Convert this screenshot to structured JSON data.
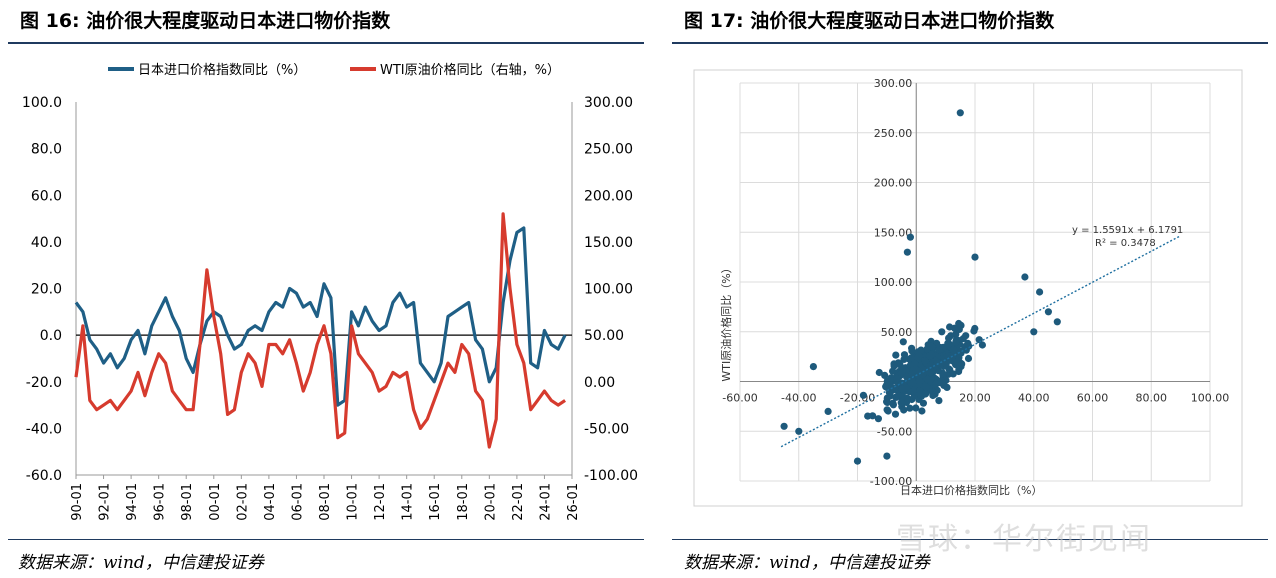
{
  "left_figure": {
    "title": "图 16: 油价很大程度驱动日本进口物价指数",
    "source": "数据来源：wind，中信建投证券"
  },
  "right_figure": {
    "title": "图 17: 油价很大程度驱动日本进口物价指数",
    "source": "数据来源：wind，中信建投证券"
  },
  "watermark": "雪球：华尔街见闻",
  "colors": {
    "blue": "#1f5f86",
    "red": "#d63b2e",
    "scatter": "#1e5a7c",
    "rule": "#1f3a5f"
  },
  "chart_data": [
    {
      "type": "line",
      "legend": [
        "日本进口价格指数同比（%）",
        "WTI原油价格同比（右轴，%）"
      ],
      "legend_position": "top",
      "x_ticks": [
        "90-01",
        "92-01",
        "94-01",
        "96-01",
        "98-01",
        "00-01",
        "02-01",
        "04-01",
        "06-01",
        "08-01",
        "10-01",
        "12-01",
        "14-01",
        "16-01",
        "18-01",
        "20-01",
        "22-01",
        "24-01",
        "26-01"
      ],
      "y_left_ticks": [
        "100.0",
        "80.0",
        "60.0",
        "40.0",
        "20.0",
        "0.0",
        "-20.0",
        "-40.0",
        "-60.0"
      ],
      "y_right_ticks": [
        "300.00",
        "250.00",
        "200.00",
        "150.00",
        "100.00",
        "50.00",
        "0.00",
        "-50.00",
        "-100.00"
      ],
      "ylim_left": [
        -60,
        100
      ],
      "ylim_right": [
        -100,
        300
      ],
      "x": [
        1990,
        1990.5,
        1991,
        1991.5,
        1992,
        1992.5,
        1993,
        1993.5,
        1994,
        1994.5,
        1995,
        1995.5,
        1996,
        1996.5,
        1997,
        1997.5,
        1998,
        1998.5,
        1999,
        1999.5,
        2000,
        2000.5,
        2001,
        2001.5,
        2002,
        2002.5,
        2003,
        2003.5,
        2004,
        2004.5,
        2005,
        2005.5,
        2006,
        2006.5,
        2007,
        2007.5,
        2008,
        2008.5,
        2009,
        2009.5,
        2010,
        2010.5,
        2011,
        2011.5,
        2012,
        2012.5,
        2013,
        2013.5,
        2014,
        2014.5,
        2015,
        2015.5,
        2016,
        2016.5,
        2017,
        2017.5,
        2018,
        2018.5,
        2019,
        2019.5,
        2020,
        2020.5,
        2021,
        2021.5,
        2022,
        2022.5,
        2023,
        2023.5,
        2024,
        2024.5,
        2025,
        2025.5
      ],
      "series": [
        {
          "name": "日本进口价格指数同比（%）",
          "axis": "left",
          "values": [
            14,
            10,
            -2,
            -6,
            -12,
            -8,
            -14,
            -10,
            -2,
            2,
            -8,
            4,
            10,
            16,
            8,
            2,
            -10,
            -16,
            -4,
            6,
            10,
            8,
            0,
            -6,
            -4,
            2,
            4,
            2,
            10,
            14,
            12,
            20,
            18,
            12,
            14,
            8,
            22,
            16,
            -30,
            -28,
            10,
            4,
            12,
            6,
            2,
            4,
            14,
            18,
            12,
            14,
            -12,
            -16,
            -20,
            -12,
            8,
            10,
            12,
            14,
            -2,
            -6,
            -20,
            -14,
            14,
            32,
            44,
            46,
            -12,
            -14,
            2,
            -4,
            -6,
            0
          ]
        },
        {
          "name": "WTI原油价格同比（右轴，%）",
          "axis": "right",
          "values": [
            5,
            60,
            -20,
            -30,
            -25,
            -20,
            -30,
            -20,
            -10,
            10,
            -15,
            10,
            30,
            20,
            -10,
            -20,
            -30,
            -30,
            40,
            120,
            70,
            30,
            -35,
            -30,
            10,
            30,
            20,
            -5,
            40,
            40,
            30,
            45,
            20,
            -10,
            10,
            40,
            60,
            30,
            -60,
            -55,
            60,
            30,
            20,
            10,
            -10,
            -5,
            10,
            5,
            10,
            -30,
            -50,
            -40,
            -20,
            0,
            20,
            10,
            40,
            30,
            -10,
            -20,
            -70,
            -40,
            180,
            100,
            40,
            20,
            -30,
            -20,
            -10,
            -20,
            -25,
            -20
          ]
        }
      ]
    },
    {
      "type": "scatter",
      "xlabel": "日本进口价格指数同比（%）",
      "ylabel": "WTI原油价格同比（%）",
      "xlim": [
        -60,
        100
      ],
      "ylim": [
        -100,
        300
      ],
      "x_ticks": [
        "-60.00",
        "-40.00",
        "-20.00",
        "20.00",
        "40.00",
        "60.00",
        "80.00",
        "100.00"
      ],
      "y_ticks": [
        "300.00",
        "250.00",
        "200.00",
        "150.00",
        "100.00",
        "50.00",
        "-50.00",
        "-100.00"
      ],
      "annotation_eq": "y = 1.5591x + 6.1791",
      "annotation_r2": "R² = 0.3478",
      "trendline": {
        "slope": 1.5591,
        "intercept": 6.1791,
        "x_range": [
          -46,
          90
        ]
      },
      "highlight_points": [
        [
          15,
          270
        ],
        [
          -2,
          145
        ],
        [
          -3,
          130
        ],
        [
          20,
          125
        ],
        [
          37,
          105
        ],
        [
          42,
          90
        ],
        [
          45,
          70
        ],
        [
          48,
          60
        ],
        [
          40,
          50
        ],
        [
          -45,
          -45
        ],
        [
          -40,
          -50
        ],
        [
          -20,
          -80
        ],
        [
          -10,
          -75
        ],
        [
          -30,
          -30
        ],
        [
          -35,
          15
        ]
      ]
    }
  ]
}
